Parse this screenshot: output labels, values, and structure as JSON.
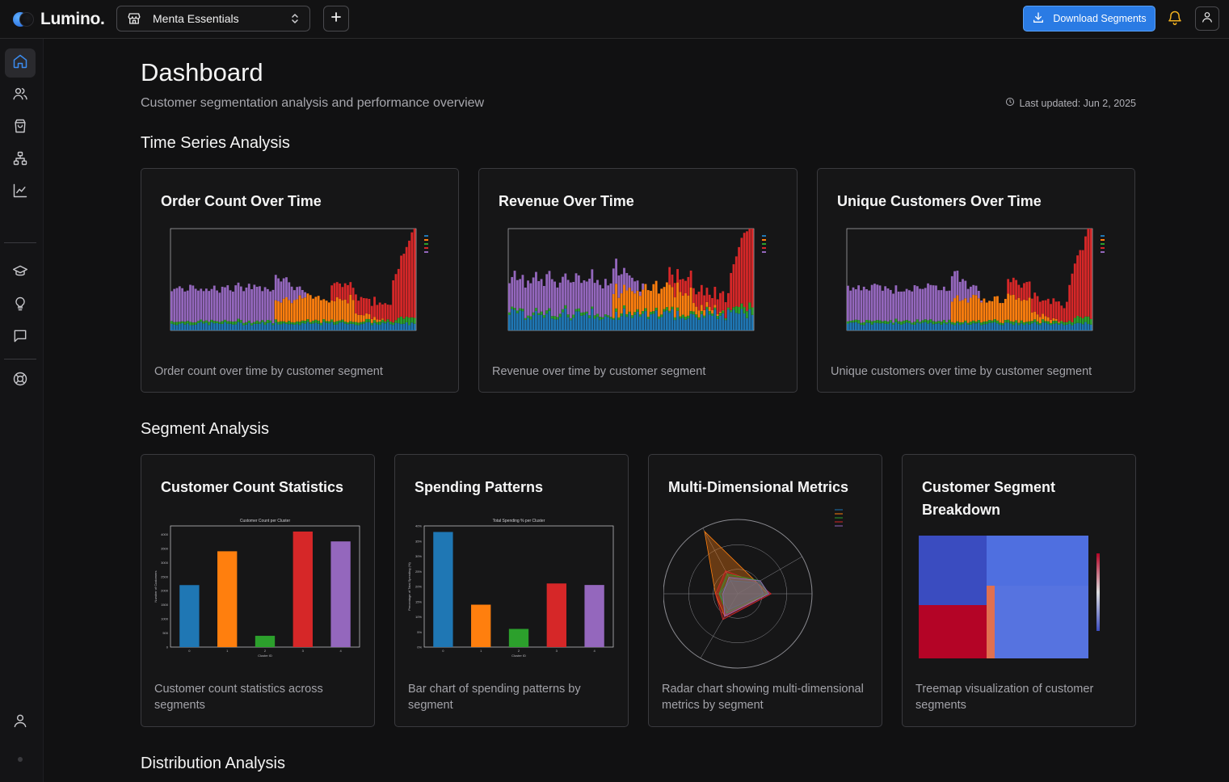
{
  "app": {
    "brand": "Lumino."
  },
  "topbar": {
    "store_name": "Menta Essentials",
    "download_label": "Download Segments"
  },
  "header": {
    "title": "Dashboard",
    "subtitle": "Customer segmentation analysis and performance overview",
    "last_updated": "Last updated: Jun 2, 2025"
  },
  "sections": {
    "time_series": "Time Series Analysis",
    "segment": "Segment Analysis",
    "distribution": "Distribution Analysis"
  },
  "cards": {
    "order_count": {
      "title": "Order Count Over Time",
      "desc": "Order count over time by customer segment"
    },
    "revenue": {
      "title": "Revenue Over Time",
      "desc": "Revenue over time by customer segment"
    },
    "unique": {
      "title": "Unique Customers Over Time",
      "desc": "Unique customers over time by customer segment"
    },
    "customer_count": {
      "title": "Customer Count Statistics",
      "desc": "Customer count statistics across segments"
    },
    "spending": {
      "title": "Spending Patterns",
      "desc": "Bar chart of spending patterns by segment"
    },
    "multi": {
      "title": "Multi-Dimensional Metrics",
      "desc": "Radar chart showing multi-dimensional metrics by segment"
    },
    "breakdown": {
      "title": "Customer Segment Breakdown",
      "desc": "Treemap visualization of customer segments"
    }
  },
  "colors": {
    "cluster0": "#1f77b4",
    "cluster1": "#ff7f0e",
    "cluster2": "#2ca02c",
    "cluster3": "#d62728",
    "cluster4": "#9467bd",
    "accent": "#2a7be4"
  },
  "chart_data": [
    {
      "type": "bar",
      "title": "Customer Count per Cluster",
      "xlabel": "Cluster ID",
      "ylabel": "Number of Customers",
      "categories": [
        "0",
        "1",
        "2",
        "3",
        "4"
      ],
      "values": [
        2200,
        3400,
        400,
        4100,
        3750
      ],
      "ylim": [
        0,
        4300
      ],
      "yticks": [
        "0",
        "500",
        "1000",
        "1500",
        "2000",
        "2500",
        "3000",
        "3500",
        "4000"
      ]
    },
    {
      "type": "bar",
      "title": "Total Spending % per Cluster",
      "xlabel": "Cluster ID",
      "ylabel": "Percentage of Total Spending (%)",
      "categories": [
        "0",
        "1",
        "2",
        "3",
        "4"
      ],
      "values": [
        38,
        14,
        6,
        21,
        20.5
      ],
      "ylim": [
        0,
        40
      ],
      "yticks": [
        "0%",
        "5%",
        "10%",
        "15%",
        "20%",
        "25%",
        "30%",
        "35%",
        "40%"
      ]
    }
  ]
}
